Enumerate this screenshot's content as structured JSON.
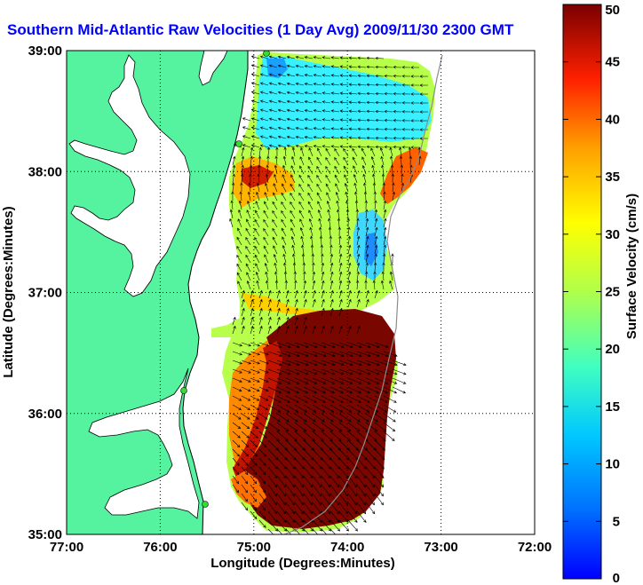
{
  "map": {
    "title": "Southern Mid-Atlantic Raw Velocities (1 Day Avg) 2009/11/30 2300 GMT",
    "x_axis_label": "Longitude (Degrees:Minutes)",
    "y_axis_label": "Latitude (Degrees:Minutes)",
    "x_ticks": [
      "77:00",
      "76:00",
      "75:00",
      "74:00",
      "73:00",
      "72:00"
    ],
    "y_ticks": [
      "39:00",
      "38:00",
      "37:00",
      "36:00",
      "35:00"
    ],
    "extent": {
      "lon_min": -77,
      "lon_max": -72,
      "lat_min": 35,
      "lat_max": 39
    },
    "grid": "dotted",
    "colors": {
      "title": "#0000ff",
      "land": "#55f2a0",
      "water": "#ffffff",
      "vectors": "#000000",
      "coastline": "#000000",
      "isobath": "#8c8c8c",
      "station_marker": "#33dd33"
    },
    "colorbar": {
      "label": "Surface Velocity (cm/s)",
      "ticks": [
        "0",
        "5",
        "10",
        "15",
        "20",
        "25",
        "30",
        "35",
        "40",
        "45",
        "50"
      ],
      "min": 0,
      "max": 50,
      "colormap": "jet"
    }
  }
}
